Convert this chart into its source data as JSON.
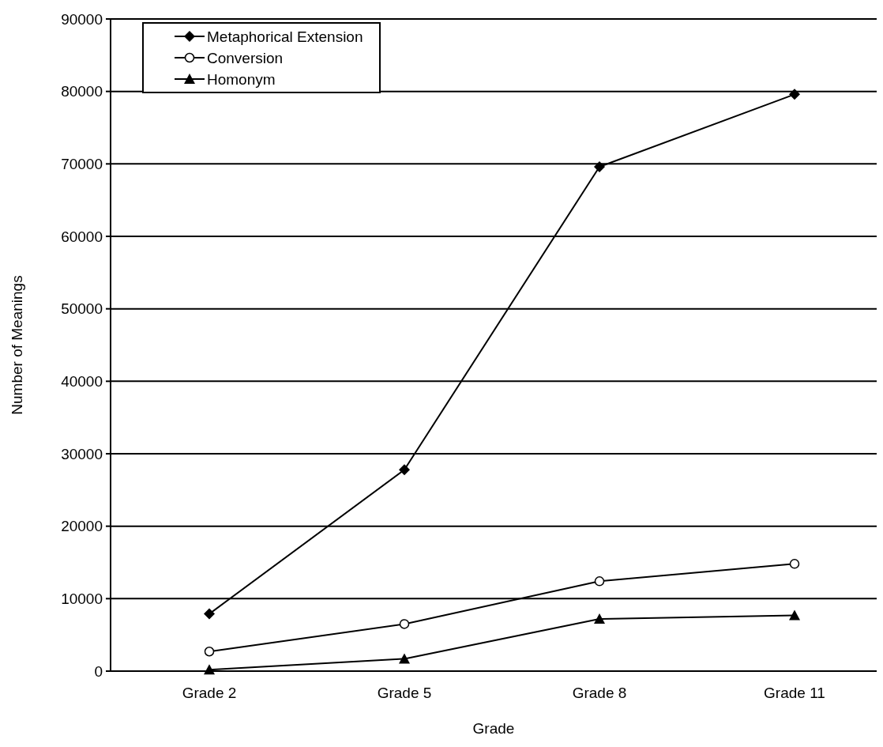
{
  "chart_data": {
    "type": "line",
    "xlabel": "Grade",
    "ylabel": "Number of Meanings",
    "categories": [
      "Grade 2",
      "Grade 5",
      "Grade 8",
      "Grade 11"
    ],
    "series": [
      {
        "name": "Metaphorical Extension",
        "color": "#000000",
        "marker": "diamond",
        "values": [
          7900,
          27800,
          69600,
          79600
        ]
      },
      {
        "name": "Conversion",
        "color": "#000000",
        "marker": "circle",
        "values": [
          2700,
          6500,
          12400,
          14800
        ]
      },
      {
        "name": "Homonym",
        "color": "#000000",
        "marker": "triangle",
        "values": [
          200,
          1700,
          7200,
          7700
        ]
      }
    ],
    "ylim": [
      0,
      90000
    ],
    "yticks": [
      0,
      10000,
      20000,
      30000,
      40000,
      50000,
      60000,
      70000,
      80000,
      90000
    ],
    "grid": "y",
    "legend": "top left",
    "line_style": "solid"
  }
}
